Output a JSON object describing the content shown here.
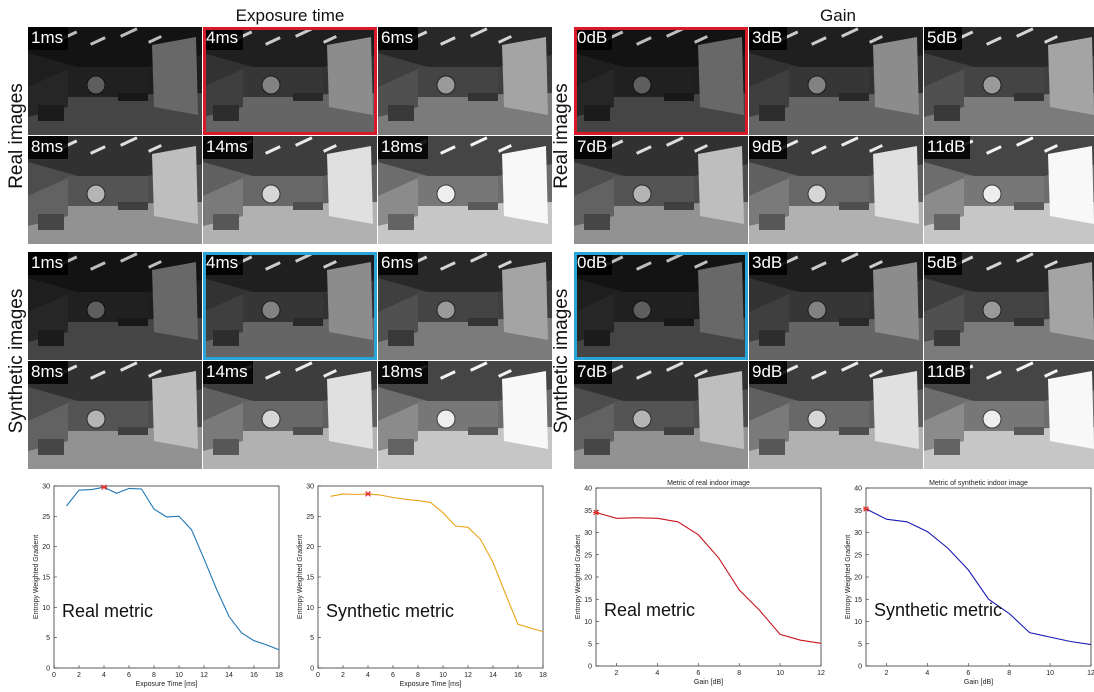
{
  "sections": {
    "exposure": {
      "title": "Exposure time"
    },
    "gain": {
      "title": "Gain"
    }
  },
  "row_labels": {
    "real": "Real images",
    "synthetic": "Synthetic images"
  },
  "exposure_tiles": [
    "1ms",
    "4ms",
    "6ms",
    "8ms",
    "14ms",
    "18ms"
  ],
  "gain_tiles": [
    "0dB",
    "3dB",
    "5dB",
    "7dB",
    "9dB",
    "11dB"
  ],
  "tile_brightness": [
    0.12,
    0.3,
    0.42,
    0.55,
    0.72,
    0.84
  ],
  "highlight": {
    "index": 1,
    "gain_index": 0,
    "real_color": "#d7192a",
    "synthetic_color": "#2aa3d8"
  },
  "chart_data": [
    {
      "type": "line",
      "title": "",
      "xlabel": "Exposure Time [ms]",
      "ylabel": "Entropy Weighted Gradient",
      "annotation": "Real metric",
      "xlim": [
        0,
        18
      ],
      "ylim": [
        0,
        30
      ],
      "xticks": [
        0,
        2,
        4,
        6,
        8,
        10,
        12,
        14,
        16,
        18
      ],
      "yticks": [
        0,
        5,
        10,
        15,
        20,
        25,
        30
      ],
      "series": [
        {
          "color": "#1f77b4",
          "x": [
            1,
            2,
            3,
            4,
            5,
            6,
            7,
            8,
            9,
            10,
            11,
            12,
            13,
            14,
            15,
            16,
            17,
            18
          ],
          "y": [
            26.7,
            29.3,
            29.4,
            29.8,
            28.8,
            29.6,
            29.5,
            26.2,
            24.9,
            25.0,
            22.8,
            18.0,
            13.0,
            8.5,
            5.8,
            4.5,
            3.8,
            3.0
          ]
        }
      ],
      "marker": {
        "x": 4,
        "y": 29.8,
        "color": "#e8302c"
      }
    },
    {
      "type": "line",
      "title": "",
      "xlabel": "Exposure Time [ms]",
      "ylabel": "Entropy Weighted Gradient",
      "annotation": "Synthetic metric",
      "xlim": [
        0,
        18
      ],
      "ylim": [
        0,
        30
      ],
      "xticks": [
        0,
        2,
        4,
        6,
        8,
        10,
        12,
        14,
        16,
        18
      ],
      "yticks": [
        0,
        5,
        10,
        15,
        20,
        25,
        30
      ],
      "series": [
        {
          "color": "#e9a51b",
          "x": [
            1,
            2,
            3,
            4,
            5,
            6,
            7,
            8,
            9,
            10,
            11,
            12,
            13,
            14,
            15,
            16,
            17,
            18
          ],
          "y": [
            28.3,
            28.7,
            28.6,
            28.7,
            28.5,
            28.1,
            27.8,
            27.6,
            27.3,
            25.6,
            23.4,
            23.2,
            21.2,
            17.4,
            12.2,
            7.2,
            6.6,
            6.0
          ]
        }
      ],
      "marker": {
        "x": 4,
        "y": 28.7,
        "color": "#e8302c"
      }
    },
    {
      "type": "line",
      "title": "Metric of real indoor image",
      "xlabel": "Gain [dB]",
      "ylabel": "Entropy Weighted Gradient",
      "annotation": "Real metric",
      "xlim": [
        1,
        12
      ],
      "ylim": [
        0,
        40
      ],
      "xticks": [
        2,
        4,
        6,
        8,
        10,
        12
      ],
      "yticks": [
        0,
        5,
        10,
        15,
        20,
        25,
        30,
        35,
        40
      ],
      "series": [
        {
          "color": "#c8161d",
          "x": [
            1,
            2,
            3,
            4,
            5,
            6,
            7,
            8,
            9,
            10,
            11,
            12
          ],
          "y": [
            34.5,
            33.2,
            33.3,
            33.2,
            32.4,
            29.5,
            24.3,
            17.1,
            12.5,
            7.1,
            5.8,
            5.1
          ]
        }
      ],
      "marker": {
        "x": 1,
        "y": 34.5,
        "color": "#e8302c"
      }
    },
    {
      "type": "line",
      "title": "Metric of synthetic indoor image",
      "xlabel": "Gain [dB]",
      "ylabel": "Entropy Weighted Gradient",
      "annotation": "Synthetic metric",
      "xlim": [
        1,
        12
      ],
      "ylim": [
        0,
        40
      ],
      "xticks": [
        2,
        4,
        6,
        8,
        10,
        12
      ],
      "yticks": [
        0,
        5,
        10,
        15,
        20,
        25,
        30,
        35,
        40
      ],
      "series": [
        {
          "color": "#1a1ab5",
          "x": [
            1,
            2,
            3,
            4,
            5,
            6,
            7,
            8,
            9,
            10,
            11,
            12
          ],
          "y": [
            35.3,
            33.0,
            32.4,
            30.2,
            26.5,
            21.6,
            15.0,
            11.8,
            7.5,
            6.5,
            5.5,
            4.8
          ]
        }
      ],
      "marker": {
        "x": 1,
        "y": 35.3,
        "color": "#e8302c"
      }
    }
  ]
}
